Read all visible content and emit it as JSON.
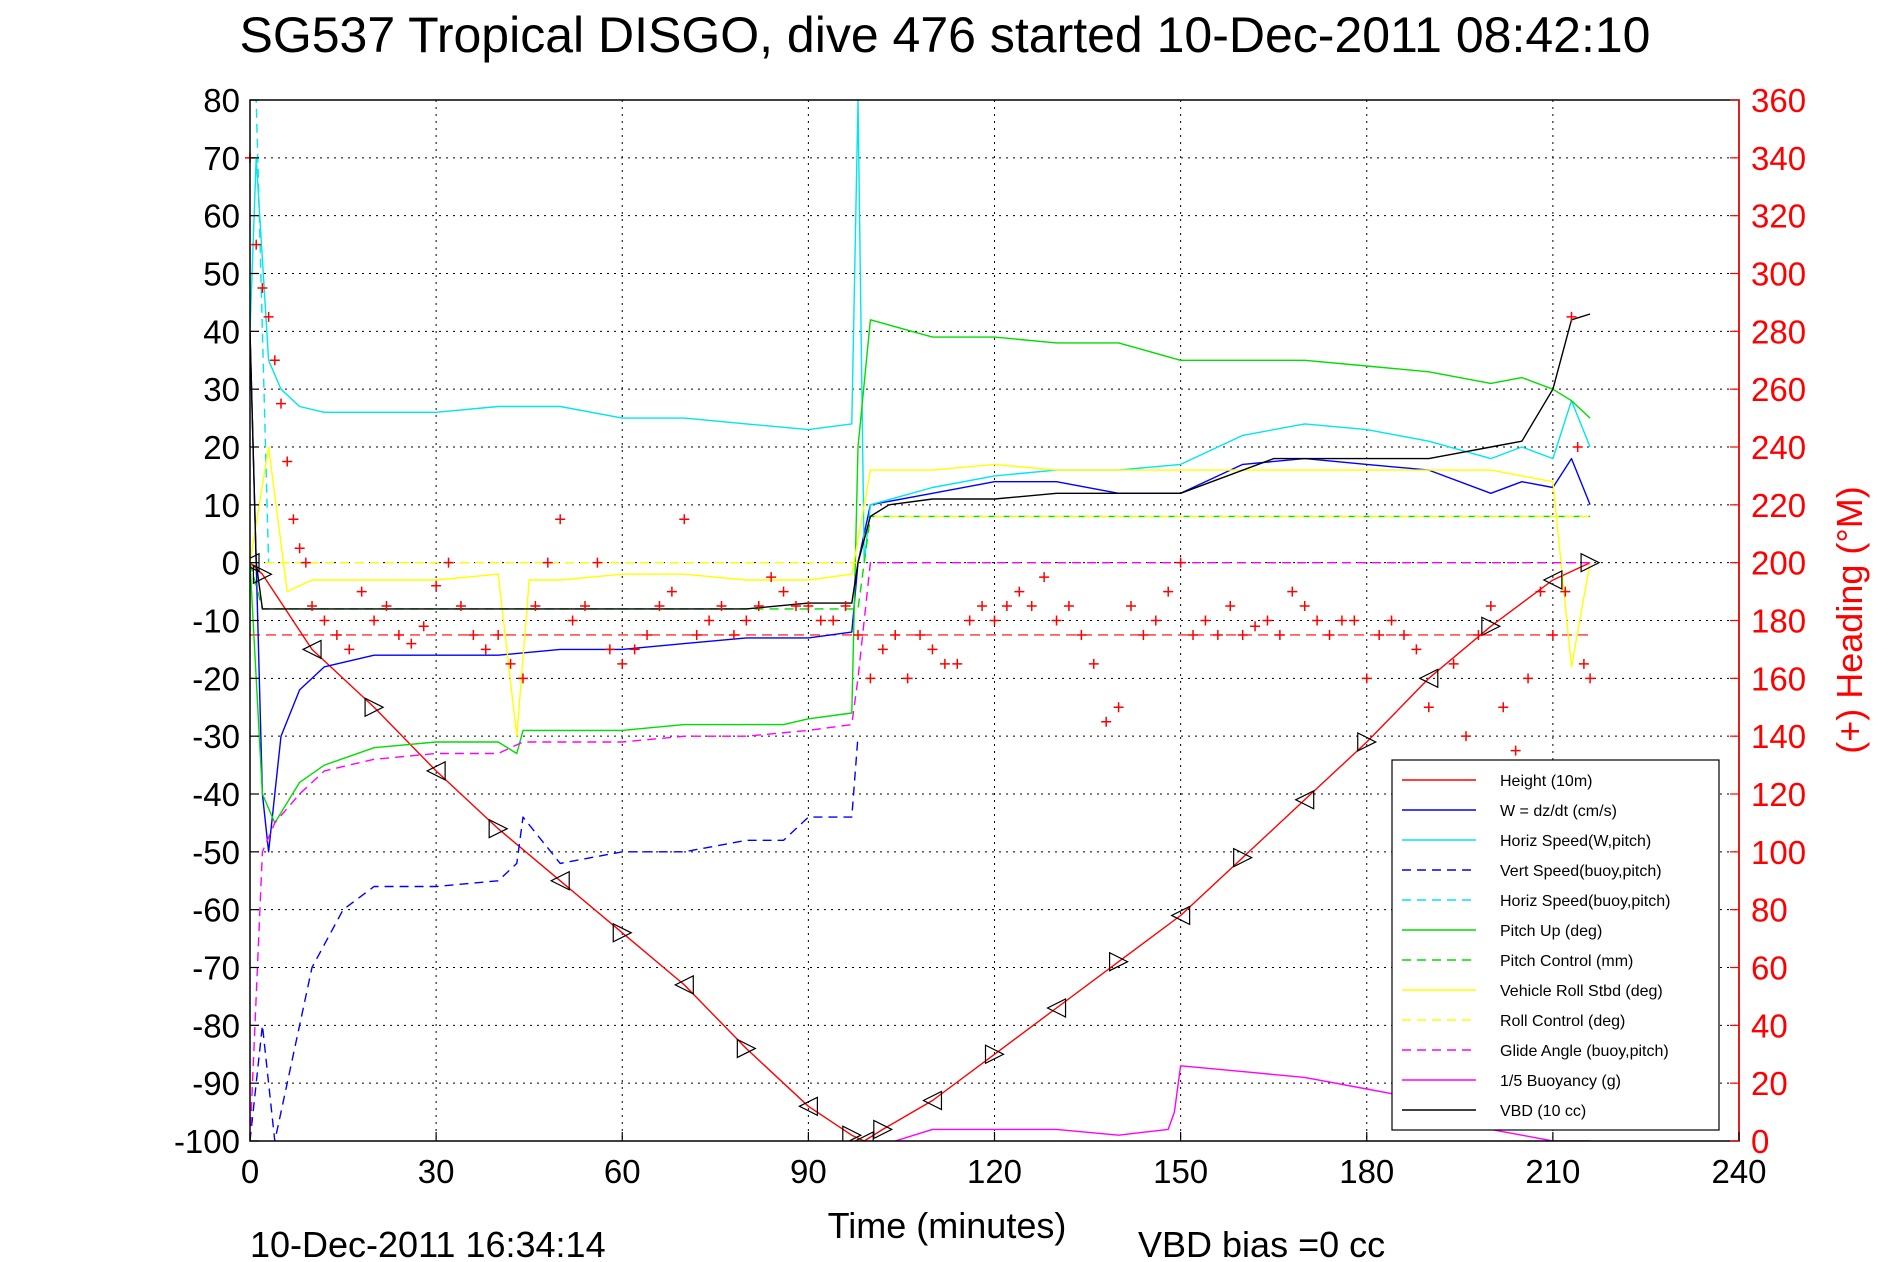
{
  "chart_data": {
    "type": "line",
    "title": "SG537 Tropical DISGO, dive 476 started 10-Dec-2011 08:42:10",
    "xlabel": "Time (minutes)",
    "ylabel_right": "(+) Heading (°M)",
    "xlim": [
      0,
      240
    ],
    "ylim": [
      -100,
      80
    ],
    "ylim_right": [
      0,
      360
    ],
    "x_ticks": [
      "0",
      "30",
      "60",
      "90",
      "120",
      "150",
      "180",
      "210",
      "240"
    ],
    "y_ticks": [
      "80",
      "70",
      "60",
      "50",
      "40",
      "30",
      "20",
      "10",
      "0",
      "-10",
      "-20",
      "-30",
      "-40",
      "-50",
      "-60",
      "-70",
      "-80",
      "-90",
      "-100"
    ],
    "y_right_ticks": [
      "360",
      "340",
      "320",
      "300",
      "280",
      "260",
      "240",
      "220",
      "200",
      "180",
      "160",
      "140",
      "120",
      "100",
      "80",
      "60",
      "40",
      "20",
      "0"
    ],
    "grid": true,
    "legend_position": "bottom-right",
    "footer_left": "10-Dec-2011 16:34:14",
    "footer_right": "VBD bias =0 cc",
    "series": [
      {
        "name": "Height (10m)",
        "color": "#ff0000",
        "style": "solid",
        "x": [
          0,
          2,
          10,
          20,
          30,
          40,
          50,
          60,
          70,
          80,
          90,
          97,
          99,
          102,
          110,
          120,
          130,
          140,
          150,
          160,
          170,
          180,
          190,
          200,
          210,
          216
        ],
        "y": [
          0,
          -2,
          -15,
          -25,
          -36,
          -46,
          -55,
          -64,
          -73,
          -84,
          -94,
          -99,
          -100,
          -98,
          -93,
          -85,
          -77,
          -69,
          -61,
          -51,
          -41,
          -31,
          -20,
          -11,
          -3,
          0
        ]
      },
      {
        "name": "W = dz/dt (cm/s)",
        "color": "#0000ff",
        "style": "solid",
        "x": [
          0,
          1,
          2,
          3,
          5,
          8,
          12,
          20,
          30,
          40,
          50,
          60,
          70,
          80,
          90,
          97,
          98,
          100,
          110,
          120,
          130,
          140,
          150,
          160,
          170,
          180,
          190,
          200,
          205,
          210,
          213,
          216
        ],
        "y": [
          40,
          0,
          -40,
          -50,
          -30,
          -22,
          -18,
          -16,
          -16,
          -16,
          -15,
          -15,
          -14,
          -13,
          -13,
          -12,
          0,
          10,
          12,
          14,
          14,
          12,
          12,
          17,
          18,
          17,
          16,
          12,
          14,
          13,
          18,
          10
        ]
      },
      {
        "name": "Horiz Speed(W,pitch)",
        "color": "#00e5ee",
        "style": "solid",
        "x": [
          0,
          1,
          3,
          5,
          8,
          12,
          20,
          30,
          40,
          50,
          60,
          70,
          80,
          90,
          97,
          98,
          99,
          100,
          110,
          120,
          130,
          140,
          150,
          160,
          170,
          180,
          190,
          200,
          205,
          210,
          213,
          216
        ],
        "y": [
          40,
          70,
          35,
          30,
          27,
          26,
          26,
          26,
          27,
          27,
          25,
          25,
          24,
          23,
          24,
          80,
          0,
          10,
          13,
          15,
          16,
          16,
          17,
          22,
          24,
          23,
          21,
          18,
          20,
          18,
          28,
          20
        ]
      },
      {
        "name": "Vert Speed(buoy,pitch)",
        "color": "#0000ff",
        "style": "dashed",
        "x": [
          0,
          2,
          4,
          6,
          8,
          10,
          15,
          20,
          30,
          40,
          43,
          44,
          50,
          60,
          70,
          80,
          86,
          90,
          97,
          98
        ],
        "y": [
          -100,
          -80,
          -100,
          -90,
          -80,
          -70,
          -60,
          -56,
          -56,
          -55,
          -52,
          -44,
          -52,
          -50,
          -50,
          -48,
          -48,
          -44,
          -44,
          -30
        ]
      },
      {
        "name": "Horiz Speed(buoy,pitch)",
        "color": "#00e5ee",
        "style": "dashed",
        "x": [
          0,
          1,
          2,
          3
        ],
        "y": [
          80,
          80,
          40,
          0
        ]
      },
      {
        "name": "Pitch Up (deg)",
        "color": "#00dd00",
        "style": "solid",
        "x": [
          0,
          2,
          4,
          8,
          12,
          20,
          30,
          40,
          43,
          44,
          50,
          60,
          70,
          80,
          86,
          90,
          97,
          98,
          100,
          110,
          120,
          130,
          140,
          150,
          160,
          170,
          180,
          190,
          200,
          205,
          210,
          213,
          216
        ],
        "y": [
          0,
          -40,
          -45,
          -38,
          -35,
          -32,
          -31,
          -31,
          -33,
          -29,
          -29,
          -29,
          -28,
          -28,
          -28,
          -27,
          -26,
          20,
          42,
          39,
          39,
          38,
          38,
          35,
          35,
          35,
          34,
          33,
          31,
          32,
          30,
          28,
          25
        ]
      },
      {
        "name": "Pitch Control (mm)",
        "color": "#00dd00",
        "style": "dashed",
        "x": [
          0,
          2,
          98,
          100,
          216
        ],
        "y": [
          0,
          -8,
          -8,
          8,
          8
        ]
      },
      {
        "name": "Vehicle Roll Stbd (deg)",
        "color": "#ffff00",
        "style": "solid",
        "x": [
          0,
          3,
          6,
          10,
          20,
          30,
          40,
          43,
          45,
          50,
          60,
          70,
          80,
          90,
          97,
          100,
          110,
          120,
          130,
          140,
          150,
          160,
          170,
          180,
          190,
          200,
          205,
          210,
          213,
          216
        ],
        "y": [
          0,
          20,
          -5,
          -3,
          -3,
          -3,
          -2,
          -30,
          -3,
          -3,
          -2,
          -2,
          -3,
          -3,
          -2,
          16,
          16,
          17,
          16,
          16,
          16,
          16,
          16,
          16,
          16,
          16,
          15,
          14,
          -18,
          0
        ]
      },
      {
        "name": "Roll Control (deg)",
        "color": "#ffff00",
        "style": "dashed",
        "x": [
          0,
          2,
          98,
          100,
          216
        ],
        "y": [
          0,
          0,
          0,
          8,
          8
        ]
      },
      {
        "name": "Glide Angle (buoy,pitch)",
        "color": "#ff00ff",
        "style": "dashed",
        "x": [
          0,
          2,
          4,
          8,
          12,
          20,
          30,
          40,
          44,
          50,
          60,
          70,
          80,
          90,
          97,
          98,
          100,
          216
        ],
        "y": [
          -100,
          -50,
          -45,
          -40,
          -36,
          -34,
          -33,
          -33,
          -31,
          -31,
          -31,
          -30,
          -30,
          -29,
          -28,
          -20,
          0,
          0
        ]
      },
      {
        "name": "1/5 Buoyancy (g)",
        "color": "#ff00ff",
        "style": "solid",
        "x": [
          104,
          110,
          120,
          130,
          140,
          148,
          149,
          150,
          160,
          170,
          180,
          190,
          200,
          205,
          210,
          216
        ],
        "y": [
          -100,
          -98,
          -98,
          -98,
          -99,
          -98,
          -95,
          -87,
          -88,
          -89,
          -91,
          -93,
          -98,
          -99,
          -100,
          -100
        ]
      },
      {
        "name": "VBD (10 cc)",
        "color": "#000000",
        "style": "solid",
        "x": [
          0,
          1,
          2,
          10,
          20,
          30,
          40,
          50,
          60,
          70,
          80,
          90,
          97,
          98,
          100,
          103,
          110,
          120,
          130,
          140,
          150,
          165,
          180,
          190,
          195,
          200,
          205,
          210,
          213,
          216
        ],
        "y": [
          40,
          0,
          -8,
          -8,
          -8,
          -8,
          -8,
          -8,
          -8,
          -8,
          -8,
          -7,
          -7,
          0,
          8,
          10,
          11,
          11,
          12,
          12,
          12,
          18,
          18,
          18,
          19,
          20,
          21,
          30,
          42,
          43
        ]
      }
    ],
    "heading": {
      "name": "Heading",
      "color": "#ff0000",
      "marker": "+",
      "axis": "right",
      "reference": 175,
      "x": [
        0,
        1,
        2,
        3,
        4,
        5,
        6,
        7,
        8,
        9,
        10,
        12,
        14,
        16,
        18,
        20,
        22,
        24,
        26,
        28,
        30,
        32,
        34,
        36,
        38,
        40,
        42,
        44,
        46,
        48,
        50,
        52,
        54,
        56,
        58,
        60,
        62,
        64,
        66,
        68,
        70,
        72,
        74,
        76,
        78,
        80,
        82,
        84,
        86,
        88,
        90,
        92,
        94,
        96,
        98,
        100,
        102,
        104,
        106,
        108,
        110,
        112,
        114,
        116,
        118,
        120,
        122,
        124,
        126,
        128,
        130,
        132,
        134,
        136,
        138,
        140,
        142,
        144,
        146,
        148,
        150,
        152,
        154,
        156,
        158,
        160,
        162,
        164,
        166,
        168,
        170,
        172,
        174,
        176,
        178,
        180,
        182,
        184,
        186,
        188,
        190,
        192,
        194,
        196,
        198,
        200,
        202,
        204,
        206,
        208,
        210,
        212,
        213,
        214,
        215,
        216
      ],
      "y": [
        340,
        310,
        295,
        285,
        270,
        255,
        235,
        215,
        205,
        200,
        185,
        180,
        175,
        170,
        190,
        180,
        185,
        175,
        172,
        178,
        192,
        200,
        185,
        175,
        170,
        175,
        165,
        160,
        185,
        200,
        215,
        180,
        185,
        200,
        170,
        165,
        170,
        175,
        185,
        190,
        215,
        175,
        180,
        185,
        175,
        180,
        185,
        195,
        190,
        185,
        185,
        180,
        180,
        185,
        175,
        160,
        170,
        175,
        160,
        175,
        170,
        165,
        165,
        180,
        185,
        180,
        185,
        190,
        185,
        195,
        180,
        185,
        175,
        165,
        145,
        150,
        185,
        175,
        180,
        190,
        200,
        175,
        180,
        175,
        185,
        175,
        178,
        180,
        175,
        190,
        185,
        180,
        175,
        180,
        180,
        160,
        175,
        180,
        175,
        170,
        150,
        125,
        165,
        140,
        175,
        185,
        150,
        135,
        160,
        190,
        175,
        190,
        285,
        240,
        165,
        160
      ]
    }
  }
}
